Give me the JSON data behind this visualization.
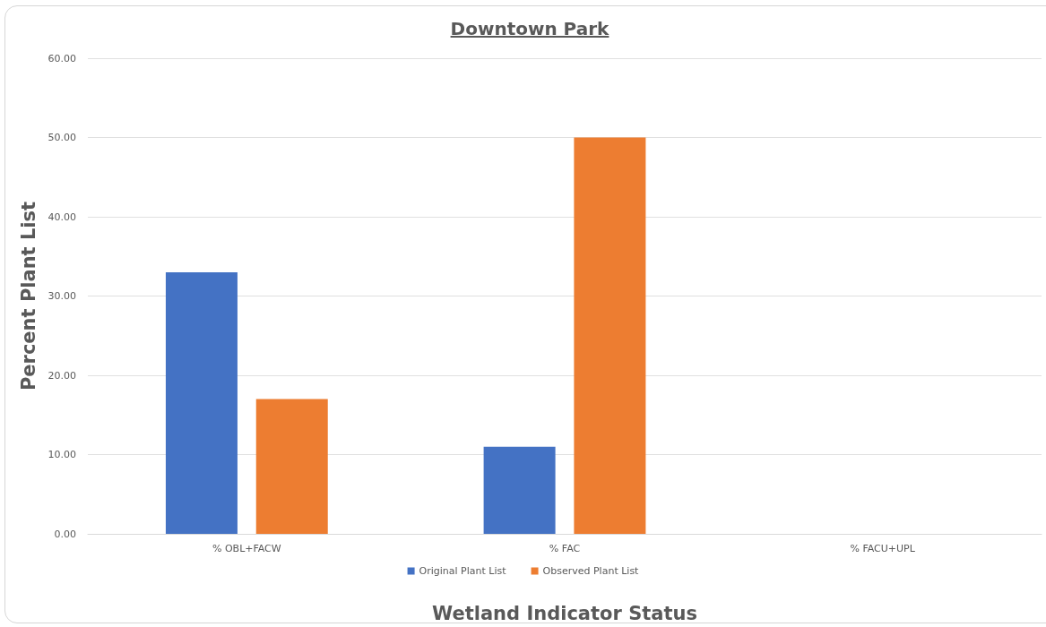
{
  "chart_data": {
    "type": "bar",
    "title": "Downtown Park",
    "xlabel": "Wetland Indicator Status",
    "ylabel": "Percent Plant List",
    "categories": [
      "% OBL+FACW",
      "% FAC",
      "% FACU+UPL"
    ],
    "series": [
      {
        "name": "Original Plant List",
        "color": "#4472c4",
        "values": [
          33,
          11,
          0
        ]
      },
      {
        "name": "Observed Plant List",
        "color": "#ed7d31",
        "values": [
          17,
          50,
          0
        ]
      }
    ],
    "ylim": [
      0,
      60
    ],
    "yticks": [
      {
        "value": 0,
        "label": "0.00"
      },
      {
        "value": 10,
        "label": "10.00"
      },
      {
        "value": 20,
        "label": "20.00"
      },
      {
        "value": 30,
        "label": "30.00"
      },
      {
        "value": 40,
        "label": "40.00"
      },
      {
        "value": 50,
        "label": "50.00"
      },
      {
        "value": 60,
        "label": "60.00"
      }
    ],
    "grid": "y",
    "legend": "bottom"
  }
}
